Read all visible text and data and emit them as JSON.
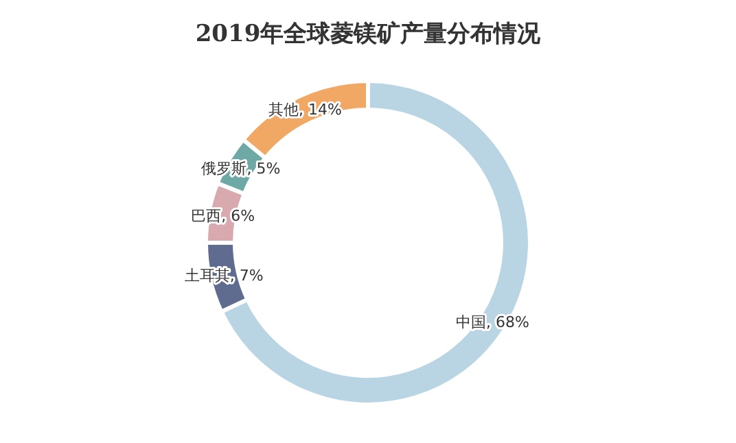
{
  "chart_data": {
    "type": "donut",
    "title": "2019年全球菱镁矿产量分布情况",
    "categories": [
      "中国",
      "土耳其",
      "巴西",
      "俄罗斯",
      "其他"
    ],
    "values": [
      68,
      7,
      6,
      5,
      14
    ],
    "colors": [
      "#b9d5e4",
      "#5f6b8f",
      "#d8a9af",
      "#6fa9a5",
      "#f2a865"
    ],
    "value_labels": [
      ", 68%",
      ", 7%",
      ", 6%",
      ", 5%",
      ", 14%"
    ],
    "legend": false
  }
}
